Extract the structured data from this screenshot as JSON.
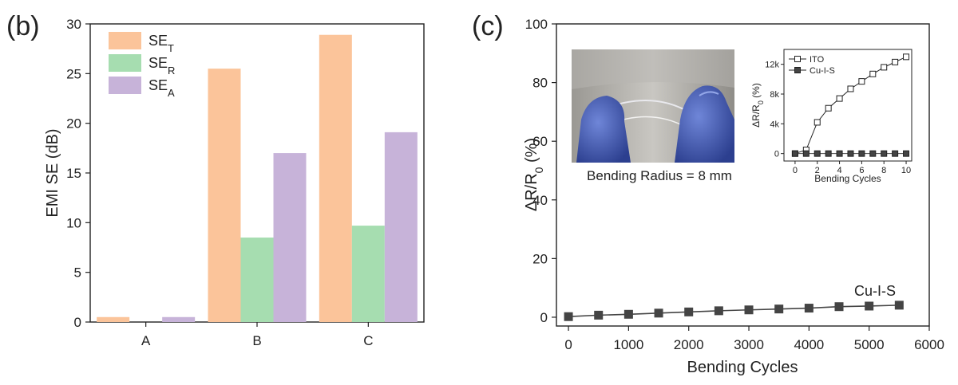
{
  "panel_b_label": "(b)",
  "panel_c_label": "(c)",
  "photo_caption": "Bending Radius = 8 mm",
  "chart_data": [
    {
      "type": "bar",
      "panel": "(b)",
      "categories": [
        "A",
        "B",
        "C"
      ],
      "ylabel": "EMI SE (dB)",
      "xlabel": "",
      "ylim": [
        0,
        30
      ],
      "yticks": [
        0,
        5,
        10,
        15,
        20,
        25,
        30
      ],
      "legend_position": "top-left",
      "series": [
        {
          "name": "SE",
          "sub": "T",
          "color": "#fbc49a",
          "values": [
            0.5,
            25.5,
            28.9
          ]
        },
        {
          "name": "SE",
          "sub": "R",
          "color": "#a6ddb0",
          "values": [
            0.0,
            8.5,
            9.7
          ]
        },
        {
          "name": "SE",
          "sub": "A",
          "color": "#c7b3d9",
          "values": [
            0.5,
            17.0,
            19.1
          ]
        }
      ]
    },
    {
      "type": "line",
      "panel": "(c)",
      "xlabel": "Bending Cycles",
      "ylabel_main": "ΔR/R",
      "ylabel_sub": "0",
      "ylabel_unit": " (%)",
      "xlim": [
        -200,
        6000
      ],
      "ylim": [
        -3,
        100
      ],
      "xticks": [
        0,
        1000,
        2000,
        3000,
        4000,
        5000,
        6000
      ],
      "yticks": [
        0,
        20,
        40,
        60,
        80,
        100
      ],
      "annotation": "Cu-I-S",
      "series": [
        {
          "name": "Cu-I-S",
          "color": "#444444",
          "x": [
            0,
            500,
            1000,
            1500,
            2000,
            2500,
            3000,
            3500,
            4000,
            4500,
            5000,
            5500
          ],
          "y": [
            0.2,
            0.7,
            1.0,
            1.4,
            1.8,
            2.2,
            2.5,
            2.8,
            3.1,
            3.6,
            3.8,
            4.1
          ]
        }
      ]
    },
    {
      "type": "line",
      "panel": "(c) inset",
      "xlabel": "Bending Cycles",
      "ylabel_main": "ΔR/R",
      "ylabel_sub": "0",
      "ylabel_unit": " (%)",
      "xlim": [
        -1,
        10.5
      ],
      "ylim": [
        -1000,
        14000
      ],
      "xticks": [
        0,
        2,
        4,
        6,
        8,
        10
      ],
      "yticks": [
        0,
        4000,
        8000,
        12000
      ],
      "ytick_labels": [
        "0",
        "4k",
        "8k",
        "12k"
      ],
      "legend_position": "top-left",
      "series": [
        {
          "name": "ITO",
          "marker": "open-square",
          "x": [
            0,
            1,
            2,
            3,
            4,
            5,
            6,
            7,
            8,
            9,
            10
          ],
          "y": [
            0,
            500,
            4200,
            6100,
            7400,
            8700,
            9700,
            10700,
            11600,
            12300,
            13000
          ]
        },
        {
          "name": "Cu-I-S",
          "marker": "filled-square",
          "x": [
            0,
            1,
            2,
            3,
            4,
            5,
            6,
            7,
            8,
            9,
            10
          ],
          "y": [
            0,
            0,
            0,
            0,
            0,
            0,
            0,
            0,
            0,
            0,
            0
          ]
        }
      ]
    }
  ]
}
